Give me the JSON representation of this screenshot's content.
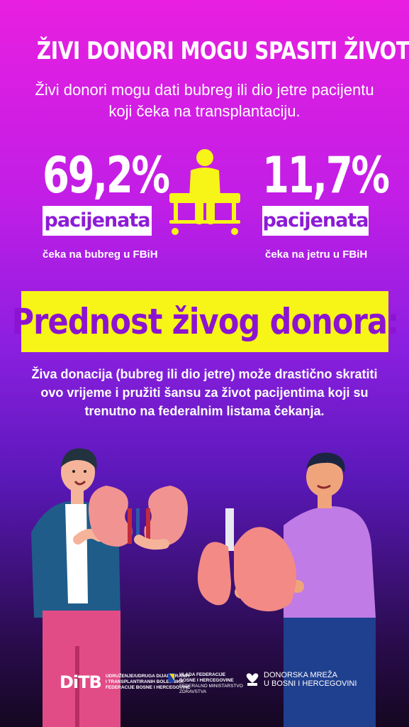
{
  "headline": "ŽIVI DONORI MOGU SPASITI ŽIVOT",
  "subheadline": "Živi donori mogu dati bubreg ili dio jetre pacijentu koji čeka na transplantaciju.",
  "stats": [
    {
      "value": "69,2%",
      "tag": "pacijenata",
      "note": "čeka na bubreg u FBiH"
    },
    {
      "value": "11,7%",
      "tag": "pacijenata",
      "note": "čeka na jetru u FBiH"
    }
  ],
  "banner": "Prednost živog donora:",
  "body": "Živa donacija (bubreg ili dio jetre) može drastično skratiti ovo vrijeme i pružiti šansu za život pacijentima koji su trenutno na federalnim listama čekanja.",
  "logos": {
    "ditb_mark": "DiTB",
    "ditb_line1": "UDRUŽENJE/UDRUGA DIJALIZIRANIH",
    "ditb_line2": "I TRANSPLANTIRANIH BOLESNIKA",
    "ditb_line3": "FEDERACIJE BOSNE I HERCEGOVINE",
    "vlada_line1": "VLADA FEDERACIJE",
    "vlada_line2": "BOSNE I HERCEGOVINE",
    "vlada_line3": "FEDERALNO MINISTARSTVO",
    "vlada_line4": "ZDRAVSTVA",
    "mreza_line1": "DONORSKA MREŽA",
    "mreza_line2": "U BOSNI I HERCEGOVINI"
  },
  "colors": {
    "accent_yellow": "#f7f418",
    "accent_purple": "#8c14d0",
    "bg_top": "#e81fe0",
    "bg_bottom": "#150721"
  }
}
